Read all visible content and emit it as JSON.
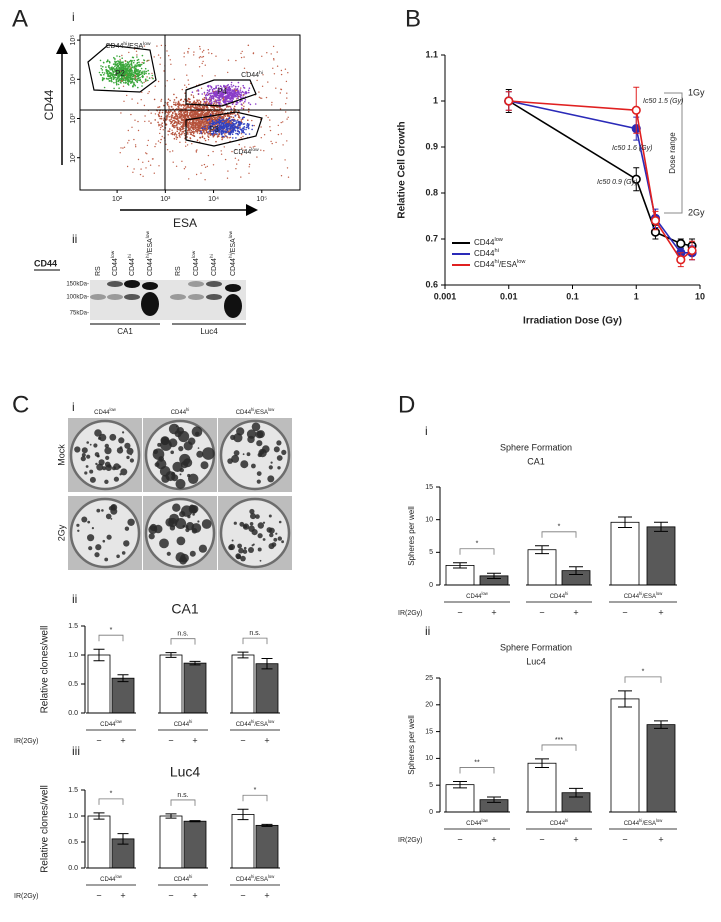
{
  "panels": {
    "a": "A",
    "b": "B",
    "c": "C",
    "d": "D"
  },
  "flow": {
    "panel_label": "i",
    "x_label": "ESA",
    "y_label": "CD44",
    "log_x": true,
    "log_y": true,
    "xlim": [
      17,
      620000
    ],
    "ylim": [
      15,
      135000
    ],
    "xticks": [
      {
        "value": 100,
        "label": "10²"
      },
      {
        "value": 1000,
        "label": "10³"
      },
      {
        "value": 10000,
        "label": "10⁴"
      },
      {
        "value": 100000,
        "label": "10⁵"
      }
    ],
    "yticks": [
      {
        "value": 100,
        "label": "10²"
      },
      {
        "value": 1000,
        "label": "10³"
      },
      {
        "value": 10000,
        "label": "10⁴"
      },
      {
        "value": 100000,
        "label": "10⁵"
      }
    ],
    "gates": [
      {
        "name": "CD44hi/ESAlow",
        "id": "P2"
      },
      {
        "name": "CD44hi",
        "id": "P4"
      },
      {
        "name": "CD44low",
        "id": "P3"
      }
    ]
  },
  "blot": {
    "panel_label": "ii",
    "antibody": "CD44",
    "lanes": [
      "RS",
      "CD44low",
      "CD44hi",
      "CD44hi/ESAlow",
      "RS",
      "CD44low",
      "CD44hi",
      "CD44hi/ESAlow"
    ],
    "markers": [
      "150kDa-",
      "100kDa-",
      "75kDa-"
    ],
    "cell_lines": [
      "CA1",
      "Luc4"
    ]
  },
  "colonies": {
    "panel_label": "i",
    "columns": [
      "CD44low",
      "CD44hi",
      "CD44hi/ESAlow"
    ],
    "rows": [
      "Mock",
      "2Gy"
    ]
  },
  "chart_data": [
    {
      "type": "line",
      "x_label": "Irradiation Dose (Gy)",
      "y_label": "Relative Cell Growth",
      "log_x": true,
      "xlim": [
        0.001,
        10
      ],
      "xticks": [
        0.001,
        0.01,
        0.1,
        1,
        10
      ],
      "ylim": [
        0.6,
        1.1
      ],
      "yticks": [
        0.6,
        0.7,
        0.8,
        0.9,
        1,
        1.1
      ],
      "legend": "lower left",
      "x": [
        0.01,
        1,
        2,
        5,
        7.5
      ],
      "series": [
        {
          "name": "CD44low",
          "color": "#000000",
          "marker": "open",
          "values": [
            1.0,
            0.83,
            0.715,
            0.69,
            0.685
          ],
          "errors": [
            0.025,
            0.025,
            0.015,
            0.01,
            0.015
          ]
        },
        {
          "name": "CD44hi",
          "color": "#2a2ab8",
          "marker": "filled",
          "values": [
            1.0,
            0.94,
            0.745,
            0.67,
            0.67
          ],
          "errors": [
            0.02,
            0.025,
            0.02,
            0.01,
            0.015
          ]
        },
        {
          "name": "CD44hi/ESAlow",
          "color": "#e02020",
          "marker": "open",
          "values": [
            1.0,
            0.98,
            0.74,
            0.655,
            0.675
          ],
          "errors": [
            0.02,
            0.05,
            0.02,
            0.015,
            0.02
          ]
        }
      ],
      "annotations": [
        "Ic50 1.5 (Gy)",
        "Ic50 1.6 (Gy)",
        "Ic50 0.9 (Gy)",
        "Dose range",
        "1Gy",
        "2Gy"
      ]
    },
    {
      "type": "bar",
      "panel_label": "ii",
      "title": "CA1",
      "y_label": "Relative clones/well",
      "ylim": [
        0,
        1.5
      ],
      "yticks": [
        {
          "value": 0,
          "label": "0.0"
        },
        0.5,
        {
          "value": 1,
          "label": "1.0"
        },
        1.5
      ],
      "categories": [
        "CD44low",
        "CD44hi",
        "CD44hi/ESAlow"
      ],
      "condition_label": "IR(2Gy)",
      "series": [
        {
          "name": "−",
          "color": "#ffffff",
          "values": [
            1.0,
            1.0,
            1.0
          ],
          "errors": [
            0.1,
            0.04,
            0.05
          ]
        },
        {
          "name": "+",
          "color": "#595959",
          "values": [
            0.6,
            0.86,
            0.85
          ],
          "errors": [
            0.06,
            0.03,
            0.09
          ]
        }
      ],
      "significance": [
        "*",
        "n.s.",
        "n.s."
      ]
    },
    {
      "type": "bar",
      "panel_label": "iii",
      "title": "Luc4",
      "y_label": "Relative clones/well",
      "ylim": [
        0,
        1.5
      ],
      "yticks": [
        {
          "value": 0,
          "label": "0.0"
        },
        0.5,
        {
          "value": 1,
          "label": "1.0"
        },
        1.5
      ],
      "categories": [
        "CD44low",
        "CD44hi",
        "CD44hi/ESAlow"
      ],
      "condition_label": "IR(2Gy)",
      "series": [
        {
          "name": "−",
          "color": "#ffffff",
          "values": [
            1.0,
            1.0,
            1.03
          ],
          "errors": [
            0.06,
            0.04,
            0.1
          ]
        },
        {
          "name": "+",
          "color": "#595959",
          "values": [
            0.56,
            0.9,
            0.82
          ],
          "errors": [
            0.1,
            0.01,
            0.02
          ]
        }
      ],
      "significance": [
        "*",
        "n.s.",
        "*"
      ]
    },
    {
      "type": "bar",
      "panel_label": "i",
      "title": "Sphere Formation",
      "subtitle": "CA1",
      "y_label": "Spheres per well",
      "ylim": [
        0,
        15
      ],
      "yticks": [
        0,
        5,
        10,
        15
      ],
      "categories": [
        "CD44low",
        "CD44hi",
        "CD44hi/ESAlow"
      ],
      "condition_label": "IR(2Gy)",
      "series": [
        {
          "name": "−",
          "color": "#ffffff",
          "values": [
            3.0,
            5.4,
            9.6
          ],
          "errors": [
            0.4,
            0.6,
            0.8
          ]
        },
        {
          "name": "+",
          "color": "#595959",
          "values": [
            1.4,
            2.2,
            8.9
          ],
          "errors": [
            0.4,
            0.6,
            0.7
          ]
        }
      ],
      "significance": [
        "*",
        "*",
        null
      ]
    },
    {
      "type": "bar",
      "panel_label": "ii",
      "title": "Sphere Formation",
      "subtitle": "Luc4",
      "y_label": "Spheres per well",
      "ylim": [
        0,
        25
      ],
      "yticks": [
        0,
        5,
        10,
        15,
        20,
        25
      ],
      "categories": [
        "CD44low",
        "CD44hi",
        "CD44hi/ESAlow"
      ],
      "condition_label": "IR(2Gy)",
      "series": [
        {
          "name": "−",
          "color": "#ffffff",
          "values": [
            5.1,
            9.1,
            21.1
          ],
          "errors": [
            0.6,
            0.8,
            1.5
          ]
        },
        {
          "name": "+",
          "color": "#595959",
          "values": [
            2.3,
            3.6,
            16.3
          ],
          "errors": [
            0.5,
            0.8,
            0.7
          ]
        }
      ],
      "significance": [
        "**",
        "***",
        "*"
      ]
    }
  ]
}
